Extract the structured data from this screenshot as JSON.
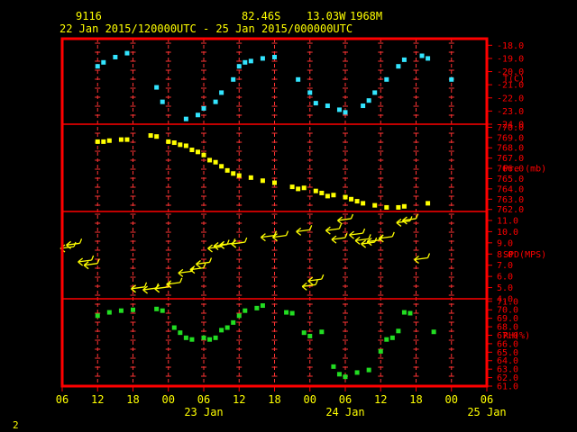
{
  "header": {
    "station": "9116",
    "lat": "82.46S",
    "lon": "13.03W",
    "elev": "1968M",
    "period": "22 Jan 2015/120000UTC - 25 Jan 2015/000000UTC"
  },
  "page_number": "2",
  "colors": {
    "frame": "#ff0000",
    "header": "#ffff00",
    "temperature": "#33e5ff",
    "pressure": "#ffff00",
    "wind": "#ffff00",
    "humidity": "#22dd22",
    "grid": "#ff3333"
  },
  "chart_data": {
    "type": "scatter",
    "x_unit": "hours from 22 Jan 2015 06 UTC",
    "x_tick_labels": [
      "06",
      "12",
      "18",
      "00",
      "06",
      "12",
      "18",
      "00",
      "06",
      "12",
      "18",
      "00",
      "06"
    ],
    "date_labels": [
      {
        "text": "23 Jan",
        "x": 24
      },
      {
        "text": "24 Jan",
        "x": 48
      },
      {
        "text": "25 Jan",
        "x": 72
      }
    ],
    "panels": [
      {
        "name": "temperature",
        "label": "T(C)",
        "label_value": -20.5,
        "ylim": [
          -24,
          -17.5
        ],
        "ticks": [
          -18,
          -19,
          -20,
          -21,
          -22,
          -23,
          -24
        ],
        "tick_labels": [
          "-18.0",
          "-19.0",
          "-20.0",
          "-21.0",
          "-22.0",
          "-23.0",
          "-24.0"
        ],
        "points": [
          [
            6,
            -19.6
          ],
          [
            7,
            -19.3
          ],
          [
            9,
            -18.9
          ],
          [
            11,
            -18.6
          ],
          [
            16,
            -21.2
          ],
          [
            17,
            -22.3
          ],
          [
            21,
            -23.6
          ],
          [
            23,
            -23.3
          ],
          [
            24,
            -22.8
          ],
          [
            26,
            -22.3
          ],
          [
            27,
            -21.6
          ],
          [
            29,
            -20.6
          ],
          [
            30,
            -19.6
          ],
          [
            31,
            -19.3
          ],
          [
            32,
            -19.2
          ],
          [
            34,
            -19.0
          ],
          [
            36,
            -18.9
          ],
          [
            40,
            -20.6
          ],
          [
            42,
            -21.6
          ],
          [
            43,
            -22.4
          ],
          [
            45,
            -22.6
          ],
          [
            47,
            -22.9
          ],
          [
            48,
            -23.1
          ],
          [
            51,
            -22.6
          ],
          [
            52,
            -22.2
          ],
          [
            53,
            -21.6
          ],
          [
            55,
            -20.6
          ],
          [
            57,
            -19.6
          ],
          [
            58,
            -19.1
          ],
          [
            61,
            -18.8
          ],
          [
            62,
            -19.0
          ],
          [
            66,
            -20.6
          ]
        ]
      },
      {
        "name": "pressure",
        "label": "Pre (mb)",
        "label_value": 766.0,
        "ylim": [
          761.8,
          770.3
        ],
        "ticks": [
          762,
          763,
          764,
          765,
          766,
          767,
          768,
          769,
          770
        ],
        "tick_labels": [
          "762.0",
          "763.0",
          "764.0",
          "765.0",
          "766.0",
          "767.0",
          "768.0",
          "769.0",
          "770.0"
        ],
        "points": [
          [
            6,
            768.6
          ],
          [
            7,
            768.6
          ],
          [
            8,
            768.7
          ],
          [
            10,
            768.8
          ],
          [
            11,
            768.8
          ],
          [
            15,
            769.2
          ],
          [
            16,
            769.1
          ],
          [
            18,
            768.6
          ],
          [
            19,
            768.5
          ],
          [
            20,
            768.3
          ],
          [
            21,
            768.2
          ],
          [
            22,
            767.8
          ],
          [
            23,
            767.6
          ],
          [
            24,
            767.3
          ],
          [
            25,
            766.8
          ],
          [
            26,
            766.6
          ],
          [
            27,
            766.2
          ],
          [
            28,
            765.8
          ],
          [
            29,
            765.5
          ],
          [
            30,
            765.3
          ],
          [
            32,
            765.1
          ],
          [
            34,
            764.8
          ],
          [
            36,
            764.6
          ],
          [
            39,
            764.2
          ],
          [
            40,
            764.0
          ],
          [
            41,
            764.1
          ],
          [
            43,
            763.8
          ],
          [
            44,
            763.6
          ],
          [
            45,
            763.3
          ],
          [
            46,
            763.4
          ],
          [
            48,
            763.2
          ],
          [
            49,
            763.0
          ],
          [
            50,
            762.8
          ],
          [
            51,
            762.6
          ],
          [
            53,
            762.4
          ],
          [
            55,
            762.2
          ],
          [
            57,
            762.2
          ],
          [
            58,
            762.3
          ],
          [
            62,
            762.6
          ]
        ]
      },
      {
        "name": "wind",
        "label": "SPD(MPS)",
        "label_value": 8.0,
        "ylim": [
          4,
          11.8
        ],
        "ticks": [
          4,
          5,
          6,
          7,
          8,
          9,
          10,
          11
        ],
        "tick_labels": [
          "4.0",
          "5.0",
          "6.0",
          "7.0",
          "8.0",
          "9.0",
          "10.0",
          "11.0"
        ],
        "barbs": [
          [
            0,
            8.5
          ],
          [
            1,
            8.8
          ],
          [
            3,
            7.3
          ],
          [
            4,
            7.0
          ],
          [
            12,
            4.9
          ],
          [
            14,
            4.8
          ],
          [
            16,
            4.9
          ],
          [
            18,
            5.3
          ],
          [
            20,
            6.3
          ],
          [
            22,
            6.6
          ],
          [
            23,
            7.1
          ],
          [
            25,
            8.5
          ],
          [
            26,
            8.7
          ],
          [
            27,
            8.8
          ],
          [
            29,
            8.9
          ],
          [
            34,
            9.5
          ],
          [
            36,
            9.5
          ],
          [
            40,
            10.0
          ],
          [
            41,
            5.1
          ],
          [
            42,
            5.6
          ],
          [
            45,
            10.1
          ],
          [
            46,
            9.3
          ],
          [
            47,
            11.0
          ],
          [
            49,
            9.7
          ],
          [
            50,
            9.2
          ],
          [
            51,
            8.9
          ],
          [
            52,
            9.1
          ],
          [
            54,
            9.4
          ],
          [
            57,
            10.8
          ],
          [
            58,
            11.0
          ],
          [
            60,
            7.5
          ]
        ]
      },
      {
        "name": "humidity",
        "label": "RH(%)",
        "label_value": 67,
        "ylim": [
          61,
          71.3
        ],
        "ticks": [
          61,
          62,
          63,
          64,
          65,
          66,
          67,
          68,
          69,
          70,
          71
        ],
        "tick_labels": [
          "61.0",
          "62.0",
          "63.0",
          "64.0",
          "65.0",
          "66.0",
          "67.0",
          "68.0",
          "69.0",
          "70.0",
          "71.0"
        ],
        "points": [
          [
            6,
            69.3
          ],
          [
            8,
            69.7
          ],
          [
            10,
            69.9
          ],
          [
            12,
            70.0
          ],
          [
            16,
            70.1
          ],
          [
            17,
            69.9
          ],
          [
            19,
            67.9
          ],
          [
            20,
            67.3
          ],
          [
            21,
            66.7
          ],
          [
            22,
            66.5
          ],
          [
            24,
            66.7
          ],
          [
            25,
            66.5
          ],
          [
            26,
            66.7
          ],
          [
            27,
            67.6
          ],
          [
            28,
            67.9
          ],
          [
            29,
            68.5
          ],
          [
            30,
            69.3
          ],
          [
            31,
            69.9
          ],
          [
            33,
            70.2
          ],
          [
            34,
            70.5
          ],
          [
            38,
            69.7
          ],
          [
            39,
            69.6
          ],
          [
            41,
            67.3
          ],
          [
            42,
            66.9
          ],
          [
            44,
            67.4
          ],
          [
            46,
            63.3
          ],
          [
            47,
            62.4
          ],
          [
            48,
            62.1
          ],
          [
            50,
            62.6
          ],
          [
            52,
            62.9
          ],
          [
            54,
            65.1
          ],
          [
            55,
            66.5
          ],
          [
            56,
            66.7
          ],
          [
            57,
            67.5
          ],
          [
            58,
            69.7
          ],
          [
            59,
            69.6
          ],
          [
            63,
            67.4
          ]
        ]
      }
    ]
  }
}
